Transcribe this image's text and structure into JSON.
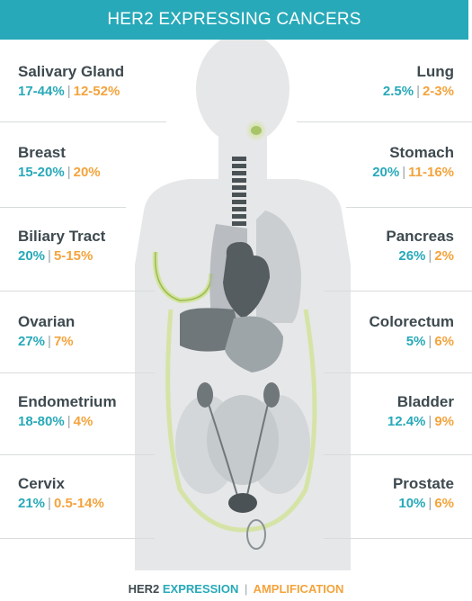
{
  "title": "HER2 EXPRESSING CANCERS",
  "left": [
    {
      "organ": "Salivary Gland",
      "expression": "17-44%",
      "amplification": "12-52%"
    },
    {
      "organ": "Breast",
      "expression": "15-20%",
      "amplification": "20%"
    },
    {
      "organ": "Biliary Tract",
      "expression": "20%",
      "amplification": "5-15%"
    },
    {
      "organ": "Ovarian",
      "expression": "27%",
      "amplification": "7%"
    },
    {
      "organ": "Endometrium",
      "expression": "18-80%",
      "amplification": "4%"
    },
    {
      "organ": "Cervix",
      "expression": "21%",
      "amplification": "0.5-14%"
    }
  ],
  "right": [
    {
      "organ": "Lung",
      "expression": "2.5%",
      "amplification": "2-3%"
    },
    {
      "organ": "Stomach",
      "expression": "20%",
      "amplification": "11-16%"
    },
    {
      "organ": "Pancreas",
      "expression": "26%",
      "amplification": "2%"
    },
    {
      "organ": "Colorectum",
      "expression": "5%",
      "amplification": "6%"
    },
    {
      "organ": "Bladder",
      "expression": "12.4%",
      "amplification": "9%"
    },
    {
      "organ": "Prostate",
      "expression": "10%",
      "amplification": "6%"
    }
  ],
  "separator": "|",
  "legend": {
    "prefix": "HER2",
    "expression": "EXPRESSION",
    "separator": "|",
    "amplification": "AMPLIFICATION"
  },
  "colors": {
    "header": "#27a9b9",
    "expression": "#27a9b9",
    "amplification": "#f4a33c",
    "text": "#3e4a4f"
  }
}
